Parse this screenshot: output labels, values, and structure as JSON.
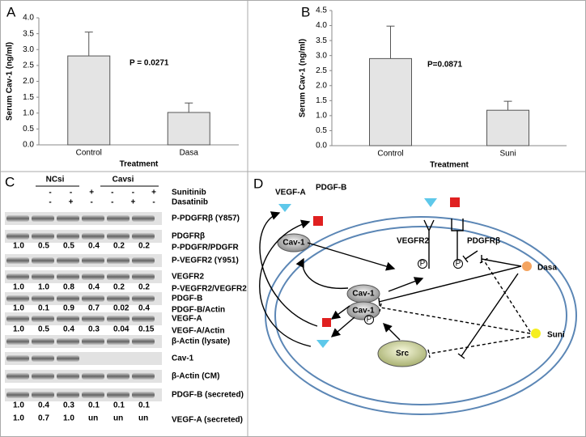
{
  "chart_data": [
    {
      "type": "bar",
      "panel": "A",
      "y_label": "Serum Cav-1 (ng/ml)",
      "x_label": "Treatment",
      "annotation": "P = 0.0271",
      "categories": [
        "Control",
        "Dasa"
      ],
      "values": [
        2.8,
        1.02
      ],
      "errors": [
        0.75,
        0.3
      ],
      "color": "#e4e4e4",
      "ylim": [
        0,
        4
      ],
      "yticks": [
        {
          "value": 0,
          "label": "0.0"
        },
        {
          "value": 0.5,
          "label": "0.5"
        },
        {
          "value": 1,
          "label": "1.0"
        },
        {
          "value": 1.5,
          "label": "1.5"
        },
        {
          "value": 2,
          "label": "2.0"
        },
        {
          "value": 2.5,
          "label": "2.5"
        },
        {
          "value": 3,
          "label": "3.0"
        },
        {
          "value": 3.5,
          "label": "3.5"
        },
        {
          "value": 4,
          "label": "4.0"
        }
      ]
    },
    {
      "type": "bar",
      "panel": "B",
      "y_label": "Serum Cav-1 (ng/ml)",
      "x_label": "Treatment",
      "annotation": "P=0.0871",
      "categories": [
        "Control",
        "Suni"
      ],
      "values": [
        2.9,
        1.18
      ],
      "errors": [
        1.08,
        0.3
      ],
      "color": "#e4e4e4",
      "ylim": [
        0,
        4.5
      ],
      "yticks": [
        {
          "value": 0,
          "label": "0.0"
        },
        {
          "value": 0.5,
          "label": "0.5"
        },
        {
          "value": 1,
          "label": "1.0"
        },
        {
          "value": 1.5,
          "label": "1.5"
        },
        {
          "value": 2,
          "label": "2.0"
        },
        {
          "value": 2.5,
          "label": "2.5"
        },
        {
          "value": 3,
          "label": "3.0"
        },
        {
          "value": 3.5,
          "label": "3.5"
        },
        {
          "value": 4,
          "label": "4.0"
        },
        {
          "value": 4.5,
          "label": "4.5"
        }
      ]
    }
  ],
  "blot": {
    "panel": "C",
    "groups": [
      "NCsi",
      "Cavsi"
    ],
    "sign_rows": [
      {
        "label": "Sunitinib",
        "signs": [
          "-",
          "-",
          "+",
          "-",
          "-",
          "+"
        ]
      },
      {
        "label": "Dasatinib",
        "signs": [
          "-",
          "+",
          "-",
          "-",
          "+",
          "-"
        ]
      }
    ],
    "rows": [
      {
        "kind": "band",
        "label": "P-PDGFRβ (Y857)"
      },
      {
        "kind": "band",
        "label": "PDGFRβ"
      },
      {
        "kind": "numbers",
        "label": "P-PDGFR/PDGFR",
        "cells": [
          "1.0",
          "0.5",
          "0.5",
          "0.4",
          "0.2",
          "0.2"
        ]
      },
      {
        "kind": "band",
        "label": "P-VEGFR2 (Y951)"
      },
      {
        "kind": "band",
        "label": "VEGFR2"
      },
      {
        "kind": "numbers",
        "label": "P-VEGFR2/VEGFR2",
        "cells": [
          "1.0",
          "1.0",
          "0.8",
          "0.4",
          "0.2",
          "0.2"
        ]
      },
      {
        "kind": "band",
        "label": "PDGF-B"
      },
      {
        "kind": "numbers",
        "label": "PDGF-B/Actin",
        "cells": [
          "1.0",
          "0.1",
          "0.9",
          "0.7",
          "0.02",
          "0.4"
        ]
      },
      {
        "kind": "band",
        "label": "VEGF-A"
      },
      {
        "kind": "numbers",
        "label": "VEGF-A/Actin",
        "cells": [
          "1.0",
          "0.5",
          "0.4",
          "0.3",
          "0.04",
          "0.15"
        ]
      },
      {
        "kind": "band",
        "label": "β-Actin (lysate)"
      },
      {
        "kind": "band",
        "label": "Cav-1"
      },
      {
        "kind": "band",
        "label": "β-Actin (CM)"
      },
      {
        "kind": "band",
        "label": "PDGF-B (secreted)"
      },
      {
        "kind": "numbers",
        "cells": [
          "1.0",
          "0.4",
          "0.3",
          "0.1",
          "0.1",
          "0.1"
        ]
      },
      {
        "kind": "numbers",
        "label": "VEGF-A (secreted)",
        "cells": [
          "1.0",
          "0.7",
          "1.0",
          "un",
          "un",
          "un"
        ]
      }
    ]
  },
  "diagram": {
    "panel": "D",
    "vegf_a": "VEGF-A",
    "pdgf_b": "PDGF-B",
    "cav1": [
      "Cav-1",
      "Cav-1",
      "Cav-1"
    ],
    "vegfr2": "VEGFR2",
    "pdgfrb": "PDGFRβ",
    "dasa": "Dasa",
    "suni": "Suni",
    "src": "Src",
    "phospho": [
      "P",
      "P",
      "P"
    ]
  }
}
